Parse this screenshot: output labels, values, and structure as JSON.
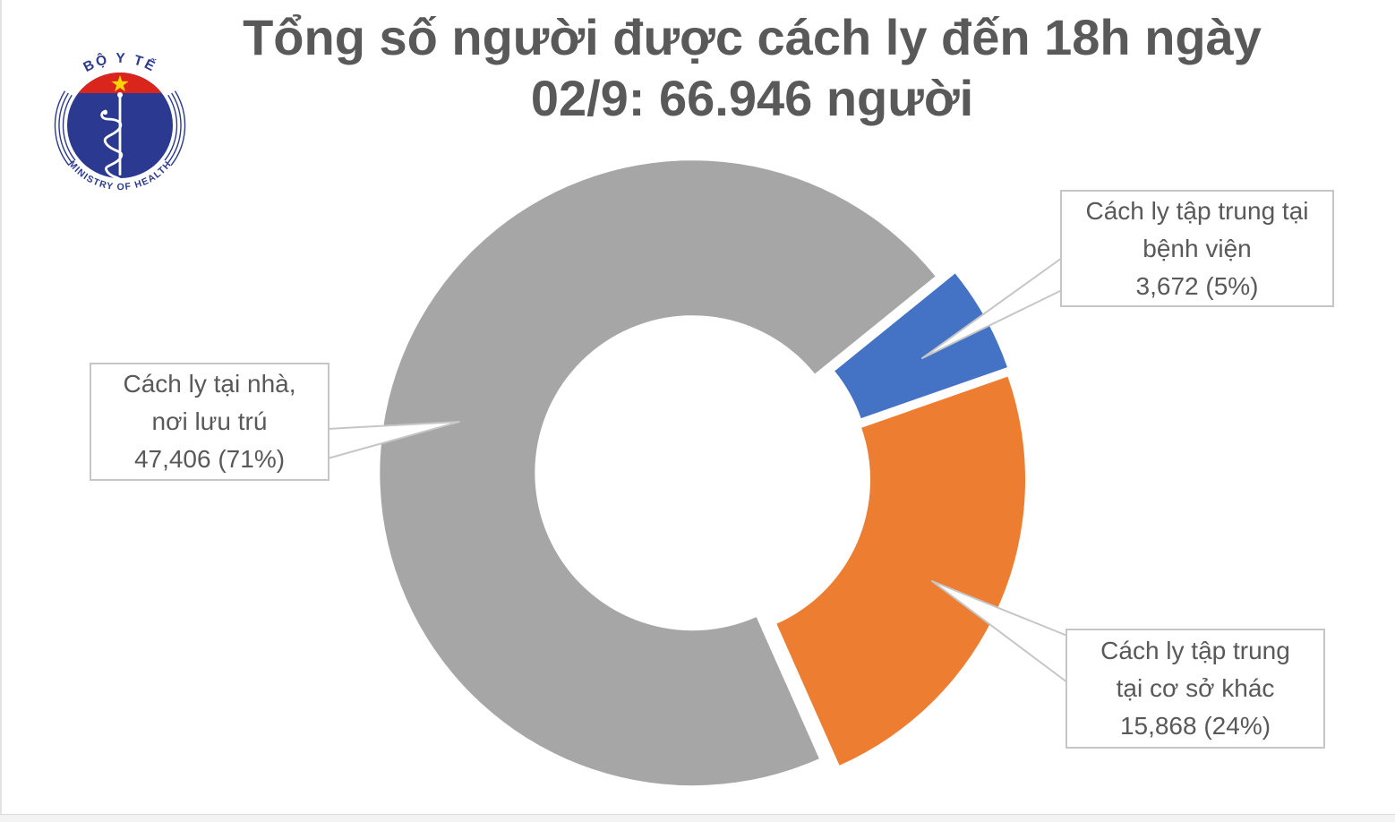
{
  "title": {
    "line1": "Tổng số người được cách ly đến 18h ngày",
    "line2": "02/9: 66.946 người",
    "full": "Tổng số người được cách ly đến 18h ngày 02/9: 66.946 người",
    "color": "#595959"
  },
  "logo": {
    "top_text": "BỘ Y TẾ",
    "bottom_text": "MINISTRY OF HEALTH",
    "colors": {
      "navy": "#2B3990",
      "red": "#DA251D",
      "star_yellow": "#FFD500",
      "staff_white": "#FFFFFF"
    }
  },
  "chart_data": {
    "type": "pie",
    "subtype": "exploded-doughnut",
    "title": "Tổng số người được cách ly đến 18h ngày 02/9: 66.946 người",
    "total_value": 66946,
    "total_display": "66.946 người",
    "legend_position": "none",
    "grid": false,
    "slices": [
      {
        "key": "benh-vien",
        "label": "Cách ly tập trung tại bệnh viện",
        "value": 3672,
        "percent": 5,
        "display": "3,672 (5%)",
        "color": "#4472C4"
      },
      {
        "key": "co-so-khac",
        "label": "Cách ly tập trung tại cơ sở khác",
        "value": 15868,
        "percent": 24,
        "display": "15,868 (24%)",
        "color": "#ED7D31"
      },
      {
        "key": "tai-nha",
        "label": "Cách ly tại nhà, nơi lưu trú",
        "value": 47406,
        "percent": 71,
        "display": "47,406 (71%)",
        "color": "#A6A6A6"
      }
    ]
  },
  "callout_labels": {
    "benh_vien": {
      "lines": [
        "Cách ly tập trung tại",
        "bệnh viện",
        "3,672 (5%)"
      ]
    },
    "co_so_khac": {
      "lines": [
        "Cách ly tập trung",
        "tại cơ sở khác",
        "15,868 (24%)"
      ]
    },
    "tai_nha": {
      "lines": [
        "Cách ly tại nhà,",
        "nơi lưu trú",
        "47,406 (71%)"
      ]
    }
  }
}
